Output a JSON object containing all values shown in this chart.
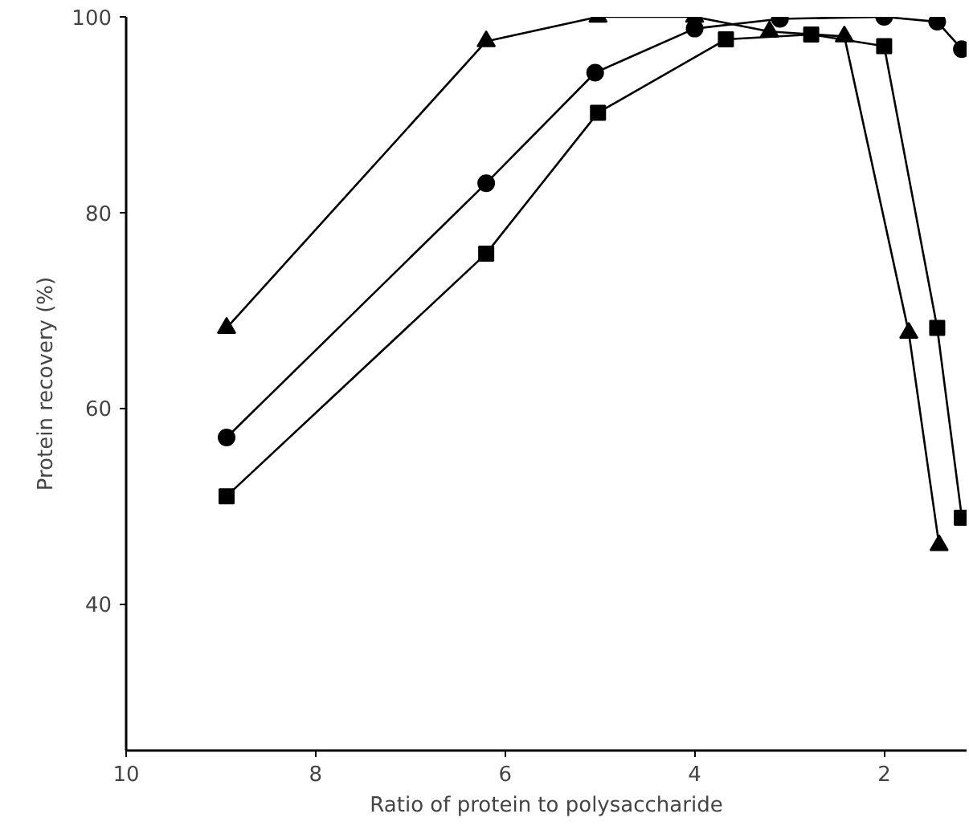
{
  "chart_data": {
    "type": "line",
    "xlabel": "Ratio of protein to polysaccharide",
    "ylabel": "Protein recovery (%)",
    "xlim": [
      10,
      1.13
    ],
    "ylim": [
      25,
      100
    ],
    "xticks": [
      10,
      8,
      6,
      4,
      2
    ],
    "yticks": [
      40,
      60,
      80,
      100
    ],
    "grid": false,
    "line_style": "solid",
    "series": [
      {
        "color": "#000000",
        "marker": "triangle",
        "x": [
          8.94,
          6.2,
          5.02,
          4.0,
          3.21,
          2.42,
          1.74,
          1.42
        ],
        "values": [
          68.2,
          97.5,
          100,
          100,
          98.5,
          98,
          67.7,
          46
        ]
      },
      {
        "color": "#000000",
        "marker": "circle",
        "x": [
          8.94,
          6.2,
          5.05,
          4.0,
          3.1,
          2.0,
          1.44,
          1.18
        ],
        "values": [
          57,
          83,
          94.3,
          98.8,
          99.8,
          100,
          99.5,
          96.7
        ]
      },
      {
        "color": "#000000",
        "marker": "square",
        "x": [
          8.94,
          6.2,
          5.02,
          3.67,
          2.77,
          2.0,
          1.44,
          1.18
        ],
        "values": [
          51,
          75.8,
          90.2,
          97.7,
          98.2,
          97,
          68.2,
          48.8
        ]
      }
    ]
  }
}
